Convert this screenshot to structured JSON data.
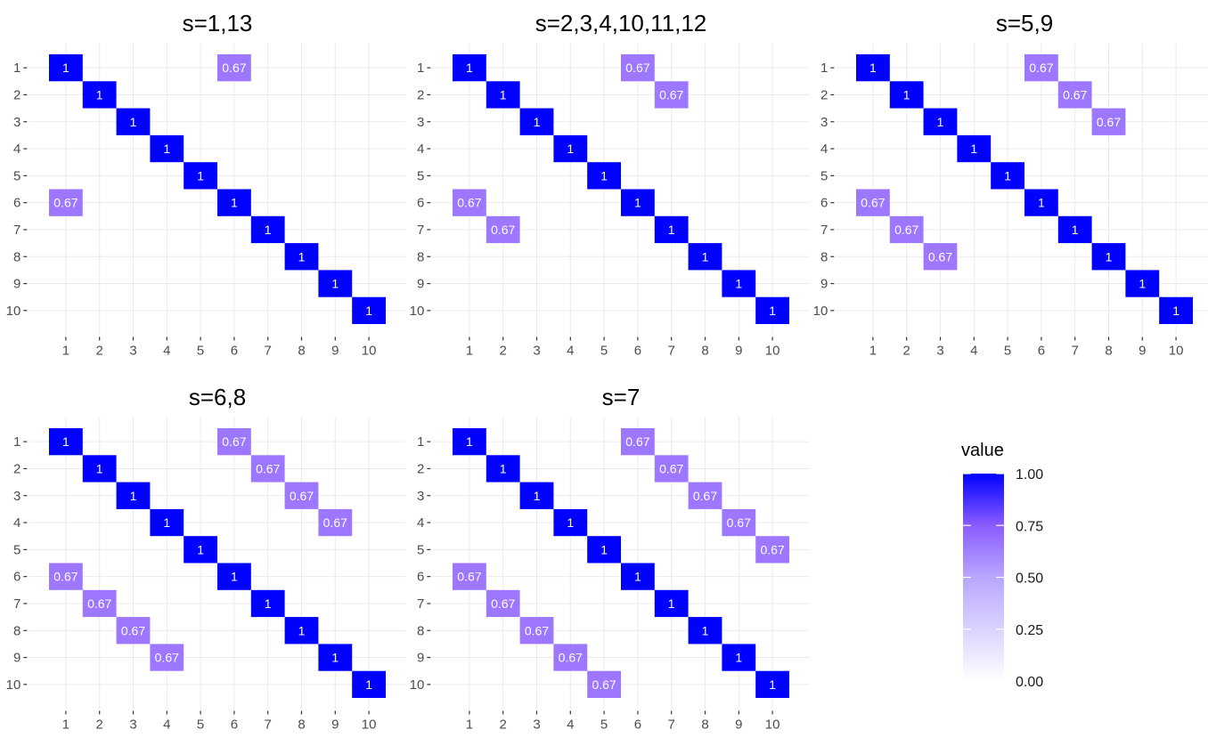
{
  "chart_data": {
    "type": "heatmap",
    "colors": {
      "low": "#ffffff",
      "high": "#0000ff",
      "grid": "#ebebeb",
      "tick_text": "#4d4d4d"
    },
    "shared_axis_ticks": [
      "1",
      "2",
      "3",
      "4",
      "5",
      "6",
      "7",
      "8",
      "9",
      "10"
    ],
    "panels": [
      {
        "title": "s=1,13",
        "cells": [
          {
            "row": 1,
            "col": 1,
            "value": 1,
            "label": "1"
          },
          {
            "row": 2,
            "col": 2,
            "value": 1,
            "label": "1"
          },
          {
            "row": 3,
            "col": 3,
            "value": 1,
            "label": "1"
          },
          {
            "row": 4,
            "col": 4,
            "value": 1,
            "label": "1"
          },
          {
            "row": 5,
            "col": 5,
            "value": 1,
            "label": "1"
          },
          {
            "row": 6,
            "col": 6,
            "value": 1,
            "label": "1"
          },
          {
            "row": 7,
            "col": 7,
            "value": 1,
            "label": "1"
          },
          {
            "row": 8,
            "col": 8,
            "value": 1,
            "label": "1"
          },
          {
            "row": 9,
            "col": 9,
            "value": 1,
            "label": "1"
          },
          {
            "row": 10,
            "col": 10,
            "value": 1,
            "label": "1"
          },
          {
            "row": 1,
            "col": 6,
            "value": 0.67,
            "label": "0.67"
          },
          {
            "row": 6,
            "col": 1,
            "value": 0.67,
            "label": "0.67"
          }
        ]
      },
      {
        "title": "s=2,3,4,10,11,12",
        "cells": [
          {
            "row": 1,
            "col": 1,
            "value": 1,
            "label": "1"
          },
          {
            "row": 2,
            "col": 2,
            "value": 1,
            "label": "1"
          },
          {
            "row": 3,
            "col": 3,
            "value": 1,
            "label": "1"
          },
          {
            "row": 4,
            "col": 4,
            "value": 1,
            "label": "1"
          },
          {
            "row": 5,
            "col": 5,
            "value": 1,
            "label": "1"
          },
          {
            "row": 6,
            "col": 6,
            "value": 1,
            "label": "1"
          },
          {
            "row": 7,
            "col": 7,
            "value": 1,
            "label": "1"
          },
          {
            "row": 8,
            "col": 8,
            "value": 1,
            "label": "1"
          },
          {
            "row": 9,
            "col": 9,
            "value": 1,
            "label": "1"
          },
          {
            "row": 10,
            "col": 10,
            "value": 1,
            "label": "1"
          },
          {
            "row": 1,
            "col": 6,
            "value": 0.67,
            "label": "0.67"
          },
          {
            "row": 2,
            "col": 7,
            "value": 0.67,
            "label": "0.67"
          },
          {
            "row": 6,
            "col": 1,
            "value": 0.67,
            "label": "0.67"
          },
          {
            "row": 7,
            "col": 2,
            "value": 0.67,
            "label": "0.67"
          }
        ]
      },
      {
        "title": "s=5,9",
        "cells": [
          {
            "row": 1,
            "col": 1,
            "value": 1,
            "label": "1"
          },
          {
            "row": 2,
            "col": 2,
            "value": 1,
            "label": "1"
          },
          {
            "row": 3,
            "col": 3,
            "value": 1,
            "label": "1"
          },
          {
            "row": 4,
            "col": 4,
            "value": 1,
            "label": "1"
          },
          {
            "row": 5,
            "col": 5,
            "value": 1,
            "label": "1"
          },
          {
            "row": 6,
            "col": 6,
            "value": 1,
            "label": "1"
          },
          {
            "row": 7,
            "col": 7,
            "value": 1,
            "label": "1"
          },
          {
            "row": 8,
            "col": 8,
            "value": 1,
            "label": "1"
          },
          {
            "row": 9,
            "col": 9,
            "value": 1,
            "label": "1"
          },
          {
            "row": 10,
            "col": 10,
            "value": 1,
            "label": "1"
          },
          {
            "row": 1,
            "col": 6,
            "value": 0.67,
            "label": "0.67"
          },
          {
            "row": 2,
            "col": 7,
            "value": 0.67,
            "label": "0.67"
          },
          {
            "row": 3,
            "col": 8,
            "value": 0.67,
            "label": "0.67"
          },
          {
            "row": 6,
            "col": 1,
            "value": 0.67,
            "label": "0.67"
          },
          {
            "row": 7,
            "col": 2,
            "value": 0.67,
            "label": "0.67"
          },
          {
            "row": 8,
            "col": 3,
            "value": 0.67,
            "label": "0.67"
          }
        ]
      },
      {
        "title": "s=6,8",
        "cells": [
          {
            "row": 1,
            "col": 1,
            "value": 1,
            "label": "1"
          },
          {
            "row": 2,
            "col": 2,
            "value": 1,
            "label": "1"
          },
          {
            "row": 3,
            "col": 3,
            "value": 1,
            "label": "1"
          },
          {
            "row": 4,
            "col": 4,
            "value": 1,
            "label": "1"
          },
          {
            "row": 5,
            "col": 5,
            "value": 1,
            "label": "1"
          },
          {
            "row": 6,
            "col": 6,
            "value": 1,
            "label": "1"
          },
          {
            "row": 7,
            "col": 7,
            "value": 1,
            "label": "1"
          },
          {
            "row": 8,
            "col": 8,
            "value": 1,
            "label": "1"
          },
          {
            "row": 9,
            "col": 9,
            "value": 1,
            "label": "1"
          },
          {
            "row": 10,
            "col": 10,
            "value": 1,
            "label": "1"
          },
          {
            "row": 1,
            "col": 6,
            "value": 0.67,
            "label": "0.67"
          },
          {
            "row": 2,
            "col": 7,
            "value": 0.67,
            "label": "0.67"
          },
          {
            "row": 3,
            "col": 8,
            "value": 0.67,
            "label": "0.67"
          },
          {
            "row": 4,
            "col": 9,
            "value": 0.67,
            "label": "0.67"
          },
          {
            "row": 6,
            "col": 1,
            "value": 0.67,
            "label": "0.67"
          },
          {
            "row": 7,
            "col": 2,
            "value": 0.67,
            "label": "0.67"
          },
          {
            "row": 8,
            "col": 3,
            "value": 0.67,
            "label": "0.67"
          },
          {
            "row": 9,
            "col": 4,
            "value": 0.67,
            "label": "0.67"
          }
        ]
      },
      {
        "title": "s=7",
        "cells": [
          {
            "row": 1,
            "col": 1,
            "value": 1,
            "label": "1"
          },
          {
            "row": 2,
            "col": 2,
            "value": 1,
            "label": "1"
          },
          {
            "row": 3,
            "col": 3,
            "value": 1,
            "label": "1"
          },
          {
            "row": 4,
            "col": 4,
            "value": 1,
            "label": "1"
          },
          {
            "row": 5,
            "col": 5,
            "value": 1,
            "label": "1"
          },
          {
            "row": 6,
            "col": 6,
            "value": 1,
            "label": "1"
          },
          {
            "row": 7,
            "col": 7,
            "value": 1,
            "label": "1"
          },
          {
            "row": 8,
            "col": 8,
            "value": 1,
            "label": "1"
          },
          {
            "row": 9,
            "col": 9,
            "value": 1,
            "label": "1"
          },
          {
            "row": 10,
            "col": 10,
            "value": 1,
            "label": "1"
          },
          {
            "row": 1,
            "col": 6,
            "value": 0.67,
            "label": "0.67"
          },
          {
            "row": 2,
            "col": 7,
            "value": 0.67,
            "label": "0.67"
          },
          {
            "row": 3,
            "col": 8,
            "value": 0.67,
            "label": "0.67"
          },
          {
            "row": 4,
            "col": 9,
            "value": 0.67,
            "label": "0.67"
          },
          {
            "row": 5,
            "col": 10,
            "value": 0.67,
            "label": "0.67"
          },
          {
            "row": 6,
            "col": 1,
            "value": 0.67,
            "label": "0.67"
          },
          {
            "row": 7,
            "col": 2,
            "value": 0.67,
            "label": "0.67"
          },
          {
            "row": 8,
            "col": 3,
            "value": 0.67,
            "label": "0.67"
          },
          {
            "row": 9,
            "col": 4,
            "value": 0.67,
            "label": "0.67"
          },
          {
            "row": 10,
            "col": 5,
            "value": 0.67,
            "label": "0.67"
          }
        ]
      }
    ],
    "legend": {
      "title": "value",
      "range": [
        0,
        1
      ],
      "ticks": [
        {
          "value": 1.0,
          "label": "1.00"
        },
        {
          "value": 0.75,
          "label": "0.75"
        },
        {
          "value": 0.5,
          "label": "0.50"
        },
        {
          "value": 0.25,
          "label": "0.25"
        },
        {
          "value": 0.0,
          "label": "0.00"
        }
      ],
      "position": "right"
    }
  }
}
